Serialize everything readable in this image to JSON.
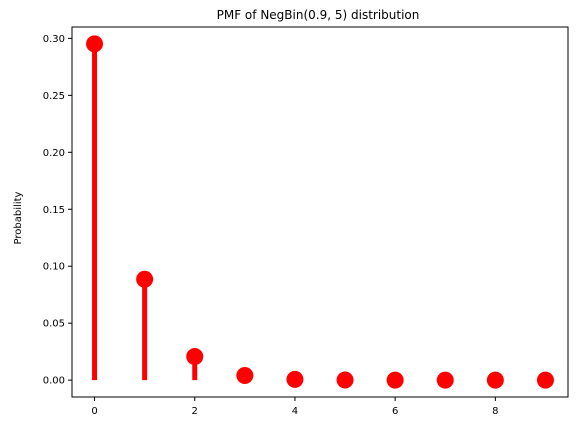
{
  "chart_data": {
    "type": "scatter",
    "style": "stem",
    "title": "PMF of NegBin(0.9, 5) distribution",
    "xlabel": "",
    "ylabel": "Probability",
    "x": [
      0,
      1,
      2,
      3,
      4,
      5,
      6,
      7,
      8,
      9
    ],
    "y": [
      0.2952,
      0.0886,
      0.0207,
      0.0041,
      0.0007,
      0.0001,
      0.0,
      0.0,
      0.0,
      0.0
    ],
    "xlim": [
      -0.45,
      9.45
    ],
    "ylim": [
      -0.0148,
      0.31
    ],
    "xticks": [
      0,
      2,
      4,
      6,
      8
    ],
    "yticks": [
      0.0,
      0.05,
      0.1,
      0.15,
      0.2,
      0.25,
      0.3
    ],
    "ytick_labels": [
      "0.00",
      "0.05",
      "0.10",
      "0.15",
      "0.20",
      "0.25",
      "0.30"
    ],
    "color": "#ff0000",
    "grid": false
  }
}
